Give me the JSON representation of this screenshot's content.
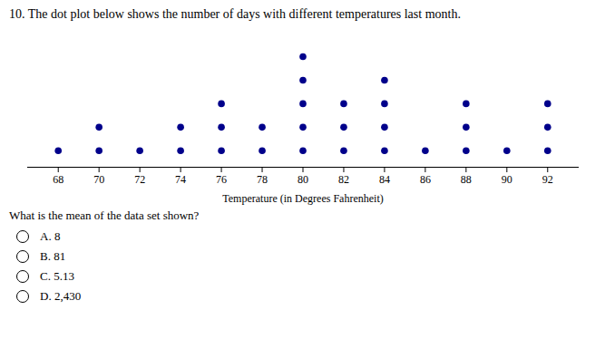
{
  "chart_data": {
    "type": "dot_plot",
    "title": "10. The dot plot below shows the number of days with different temperatures last month.",
    "xlabel": "Temperature (in Degrees Fahrenheit)",
    "x": [
      68,
      70,
      72,
      74,
      76,
      78,
      80,
      82,
      84,
      86,
      88,
      90,
      92
    ],
    "values": [
      1,
      2,
      1,
      2,
      3,
      2,
      5,
      3,
      4,
      1,
      3,
      1,
      3
    ],
    "color": "#00008B",
    "xlim": [
      66.5,
      93.5
    ],
    "xticks": [
      68,
      70,
      72,
      74,
      76,
      78,
      80,
      82,
      84,
      86,
      88,
      90,
      92
    ],
    "ylim": [
      0.3,
      6.0
    ],
    "yticks": [],
    "tick_labels": "x",
    "grid": false,
    "annotations": [
      "What is the mean of the data set shown?",
      "A. 8",
      "B. 81",
      "C. 5.13",
      "D. 2,430"
    ]
  }
}
